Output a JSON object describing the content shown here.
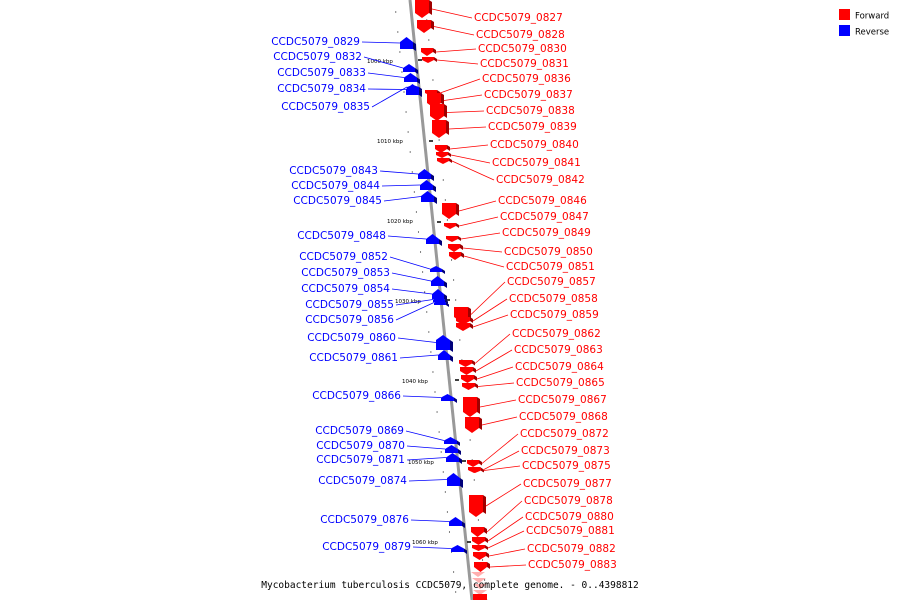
{
  "caption": "Mycobacterium tuberculosis CCDC5079, complete genome. - 0..4398812",
  "legend": {
    "forward": {
      "label": "Forward",
      "color": "#ff0000"
    },
    "reverse": {
      "label": "Reverse",
      "color": "#0000ff"
    }
  },
  "colors": {
    "forward": "#ff0000",
    "reverse": "#0000ff",
    "axis": "#999999"
  },
  "kbp_marks": [
    "1000 kbp",
    "1010 kbp",
    "1020 kbp",
    "1030 kbp",
    "1040 kbp",
    "1050 kbp",
    "1060 kbp"
  ],
  "reverse_genes": [
    "CCDC5079_0829",
    "CCDC5079_0832",
    "CCDC5079_0833",
    "CCDC5079_0834",
    "CCDC5079_0835",
    "CCDC5079_0843",
    "CCDC5079_0844",
    "CCDC5079_0845",
    "CCDC5079_0848",
    "CCDC5079_0852",
    "CCDC5079_0853",
    "CCDC5079_0854",
    "CCDC5079_0855",
    "CCDC5079_0856",
    "CCDC5079_0860",
    "CCDC5079_0861",
    "CCDC5079_0866",
    "CCDC5079_0869",
    "CCDC5079_0870",
    "CCDC5079_0871",
    "CCDC5079_0874",
    "CCDC5079_0876",
    "CCDC5079_0879"
  ],
  "forward_genes": [
    "CCDC5079_0827",
    "CCDC5079_0828",
    "CCDC5079_0830",
    "CCDC5079_0831",
    "CCDC5079_0836",
    "CCDC5079_0837",
    "CCDC5079_0838",
    "CCDC5079_0839",
    "CCDC5079_0840",
    "CCDC5079_0841",
    "CCDC5079_0842",
    "CCDC5079_0846",
    "CCDC5079_0847",
    "CCDC5079_0849",
    "CCDC5079_0850",
    "CCDC5079_0851",
    "CCDC5079_0857",
    "CCDC5079_0858",
    "CCDC5079_0859",
    "CCDC5079_0862",
    "CCDC5079_0863",
    "CCDC5079_0864",
    "CCDC5079_0865",
    "CCDC5079_0867",
    "CCDC5079_0868",
    "CCDC5079_0872",
    "CCDC5079_0873",
    "CCDC5079_0875",
    "CCDC5079_0877",
    "CCDC5079_0878",
    "CCDC5079_0880",
    "CCDC5079_0881",
    "CCDC5079_0882",
    "CCDC5079_0883"
  ]
}
